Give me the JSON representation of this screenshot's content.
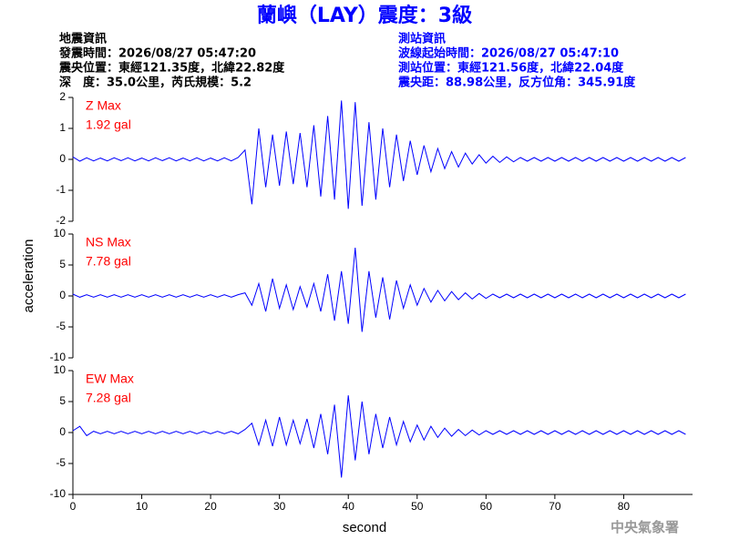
{
  "title": "蘭嶼（LAY）震度：3級",
  "quake_info": {
    "heading": "地震資訊",
    "lines": [
      "發震時間：2026/08/27 05:47:20",
      "震央位置：東經121.35度，北緯22.82度",
      "深　度：35.0公里，芮氏規模：5.2"
    ]
  },
  "station_info": {
    "heading": "測站資訊",
    "lines": [
      "波線起始時間：2026/08/27 05:47:10",
      "測站位置：東經121.56度，北緯22.04度",
      "震央距：88.98公里，反方位角：345.91度"
    ]
  },
  "credit": "中央氣象署",
  "chart_data": {
    "type": "line",
    "xlabel": "second",
    "ylabel": "acceleration",
    "x": [
      0,
      1,
      2,
      3,
      4,
      5,
      6,
      7,
      8,
      9,
      10,
      11,
      12,
      13,
      14,
      15,
      16,
      17,
      18,
      19,
      20,
      21,
      22,
      23,
      24,
      25,
      26,
      27,
      28,
      29,
      30,
      31,
      32,
      33,
      34,
      35,
      36,
      37,
      38,
      39,
      40,
      41,
      42,
      43,
      44,
      45,
      46,
      47,
      48,
      49,
      50,
      51,
      52,
      53,
      54,
      55,
      56,
      57,
      58,
      59,
      60,
      61,
      62,
      63,
      64,
      65,
      66,
      67,
      68,
      69,
      70,
      71,
      72,
      73,
      74,
      75,
      76,
      77,
      78,
      79,
      80,
      81,
      82,
      83,
      84,
      85,
      86,
      87,
      88,
      89
    ],
    "xlim": [
      0,
      90
    ],
    "xticks": [
      0,
      10,
      20,
      30,
      40,
      50,
      60,
      70,
      80
    ],
    "panels": [
      {
        "label": "Z Max",
        "max_label": "1.92 gal",
        "color": "#0000ff",
        "ylim": [
          -2,
          2
        ],
        "yticks": [
          -2,
          -1,
          0,
          1,
          2
        ],
        "values": [
          0.08,
          -0.06,
          0.05,
          -0.05,
          0.04,
          -0.05,
          0.05,
          -0.04,
          0.05,
          -0.05,
          0.04,
          -0.05,
          0.05,
          -0.04,
          0.05,
          -0.05,
          0.04,
          -0.05,
          0.05,
          -0.05,
          0.04,
          -0.05,
          0.05,
          -0.05,
          0.06,
          0.3,
          -1.45,
          1.0,
          -0.9,
          0.8,
          -0.85,
          0.9,
          -0.8,
          0.85,
          -0.9,
          1.1,
          -1.2,
          1.4,
          -1.3,
          1.9,
          -1.6,
          1.85,
          -1.5,
          1.2,
          -1.3,
          1.0,
          -0.9,
          0.8,
          -0.7,
          0.6,
          -0.5,
          0.45,
          -0.4,
          0.35,
          -0.3,
          0.25,
          -0.25,
          0.2,
          -0.15,
          0.15,
          -0.12,
          0.1,
          -0.1,
          0.08,
          -0.08,
          0.06,
          -0.06,
          0.06,
          -0.06,
          0.06,
          -0.06,
          0.06,
          -0.06,
          0.06,
          -0.06,
          0.06,
          -0.06,
          0.06,
          -0.06,
          0.06,
          -0.06,
          0.06,
          -0.06,
          0.06,
          -0.06,
          0.06,
          -0.06,
          0.06,
          -0.06,
          0.06
        ]
      },
      {
        "label": "NS Max",
        "max_label": "7.78 gal",
        "color": "#0000ff",
        "ylim": [
          -10,
          10
        ],
        "yticks": [
          -10,
          -5,
          0,
          5,
          10
        ],
        "values": [
          0.3,
          -0.2,
          0.2,
          -0.2,
          0.2,
          -0.2,
          0.2,
          -0.2,
          0.2,
          -0.2,
          0.2,
          -0.2,
          0.2,
          -0.2,
          0.2,
          -0.2,
          0.2,
          -0.2,
          0.2,
          -0.2,
          0.2,
          -0.2,
          0.2,
          -0.2,
          0.2,
          0.5,
          -1.5,
          2.0,
          -2.5,
          2.8,
          -2.0,
          1.8,
          -2.2,
          1.5,
          -1.8,
          2.0,
          -2.5,
          3.5,
          -4.0,
          4.0,
          -4.5,
          7.78,
          -5.8,
          4.0,
          -3.5,
          3.0,
          -3.8,
          2.5,
          -2.0,
          1.8,
          -1.5,
          1.2,
          -1.0,
          0.9,
          -0.8,
          0.7,
          -0.6,
          0.5,
          -0.5,
          0.4,
          -0.4,
          0.3,
          -0.3,
          0.3,
          -0.3,
          0.3,
          -0.3,
          0.3,
          -0.3,
          0.3,
          -0.3,
          0.3,
          -0.3,
          0.3,
          -0.3,
          0.3,
          -0.3,
          0.3,
          -0.3,
          0.3,
          -0.3,
          0.3,
          -0.3,
          0.3,
          -0.3,
          0.3,
          -0.3,
          0.3,
          -0.3,
          0.3
        ]
      },
      {
        "label": "EW Max",
        "max_label": "7.28 gal",
        "color": "#0000ff",
        "ylim": [
          -10,
          10
        ],
        "yticks": [
          -10,
          -5,
          0,
          5,
          10
        ],
        "values": [
          0.3,
          1.0,
          -0.5,
          0.2,
          -0.2,
          0.2,
          -0.2,
          0.2,
          -0.2,
          0.2,
          -0.2,
          0.2,
          -0.2,
          0.2,
          -0.2,
          0.2,
          -0.2,
          0.2,
          -0.2,
          0.2,
          -0.2,
          0.2,
          -0.2,
          0.2,
          -0.2,
          0.5,
          1.5,
          -2.0,
          2.0,
          -2.2,
          2.5,
          -2.0,
          2.0,
          -1.8,
          2.2,
          -2.5,
          3.0,
          -3.5,
          4.5,
          -7.28,
          6.0,
          -4.5,
          5.0,
          -3.5,
          3.0,
          -2.5,
          2.5,
          -2.0,
          1.8,
          -1.5,
          1.2,
          -1.2,
          1.0,
          -0.8,
          0.7,
          -0.6,
          0.5,
          -0.5,
          0.4,
          -0.4,
          0.3,
          -0.3,
          0.3,
          -0.3,
          0.3,
          -0.3,
          0.3,
          -0.3,
          0.3,
          -0.3,
          0.3,
          -0.3,
          0.3,
          -0.3,
          0.3,
          -0.3,
          0.3,
          -0.3,
          0.3,
          -0.3,
          0.3,
          -0.3,
          0.3,
          -0.3,
          0.3,
          -0.3,
          0.3,
          -0.3,
          0.3,
          -0.3
        ]
      }
    ]
  }
}
